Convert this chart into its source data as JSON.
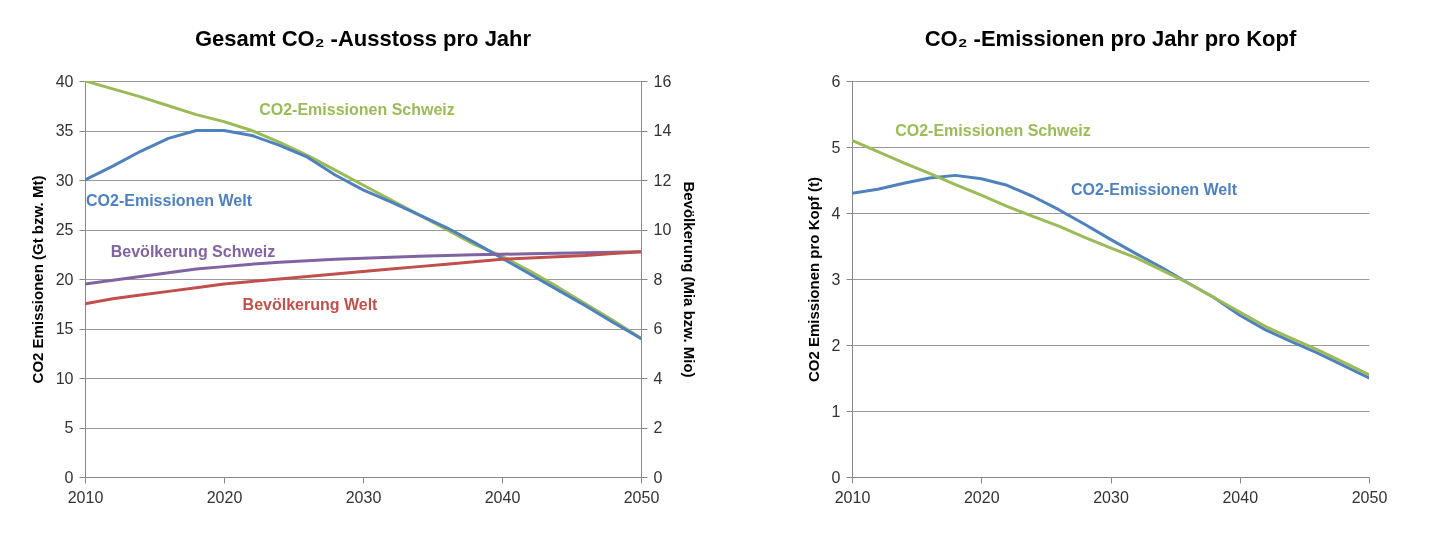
{
  "chart_data": [
    {
      "type": "line",
      "title": "Gesamt CO₂ -Ausstoss pro Jahr",
      "ylabel": "CO2 Emissionen (Gt bzw. Mt)",
      "y2label": "Bevölkerung (Mia bzw. Mio)",
      "x": [
        2010,
        2012,
        2014,
        2016,
        2018,
        2020,
        2022,
        2024,
        2026,
        2028,
        2030,
        2032,
        2034,
        2036,
        2038,
        2040,
        2042,
        2044,
        2046,
        2048,
        2050
      ],
      "xlim": [
        2010,
        2050
      ],
      "xticks": [
        2010,
        2020,
        2030,
        2040,
        2050
      ],
      "ylim": [
        0,
        40
      ],
      "yticks": [
        0,
        5,
        10,
        15,
        20,
        25,
        30,
        35,
        40
      ],
      "y2lim": [
        0,
        16
      ],
      "y2ticks": [
        0,
        2,
        4,
        6,
        8,
        10,
        12,
        14,
        16
      ],
      "grid": "y",
      "series": [
        {
          "name": "CO2-Emissionen Schweiz",
          "color": "#9bbb59",
          "values": [
            40,
            39.2,
            38.4,
            37.5,
            36.6,
            35.9,
            35.0,
            33.8,
            32.5,
            31.0,
            29.5,
            28.0,
            26.5,
            25.0,
            23.5,
            22.3,
            20.8,
            19.2,
            17.5,
            15.8,
            14
          ]
        },
        {
          "name": "CO2-Emissionen Welt",
          "color": "#4f81bd",
          "values": [
            30,
            31.4,
            32.9,
            34.2,
            35,
            35,
            34.5,
            33.5,
            32.3,
            30.5,
            29.0,
            27.8,
            26.5,
            25.2,
            23.7,
            22.1,
            20.5,
            18.9,
            17.3,
            15.6,
            14
          ]
        },
        {
          "name": "Bevölkerung Schweiz",
          "color": "#8064a2",
          "axis": "y2",
          "values": [
            7.8,
            7.95,
            8.1,
            8.25,
            8.4,
            8.5,
            8.6,
            8.68,
            8.74,
            8.8,
            8.84,
            8.88,
            8.92,
            8.95,
            8.98,
            9.0,
            9.02,
            9.04,
            9.06,
            9.08,
            9.1
          ]
        },
        {
          "name": "Bevölkerung Welt",
          "color": "#c0504d",
          "axis": "y2",
          "values": [
            7.0,
            7.2,
            7.35,
            7.5,
            7.65,
            7.8,
            7.9,
            8.0,
            8.1,
            8.2,
            8.3,
            8.4,
            8.5,
            8.6,
            8.7,
            8.8,
            8.85,
            8.9,
            8.95,
            9.03,
            9.1
          ]
        }
      ]
    },
    {
      "type": "line",
      "title": "CO₂ -Emissionen pro Jahr pro Kopf",
      "ylabel": "CO2 Emissionen pro Kopf (t)",
      "x": [
        2010,
        2012,
        2014,
        2016,
        2018,
        2020,
        2022,
        2024,
        2026,
        2028,
        2030,
        2032,
        2034,
        2036,
        2038,
        2040,
        2042,
        2044,
        2046,
        2048,
        2050
      ],
      "xlim": [
        2010,
        2050
      ],
      "xticks": [
        2010,
        2020,
        2030,
        2040,
        2050
      ],
      "ylim": [
        0,
        6
      ],
      "yticks": [
        0,
        1,
        2,
        3,
        4,
        5,
        6
      ],
      "grid": "y",
      "series": [
        {
          "name": "CO2-Emissionen Welt",
          "color": "#4f81bd",
          "values": [
            4.3,
            4.36,
            4.45,
            4.53,
            4.57,
            4.52,
            4.42,
            4.25,
            4.05,
            3.83,
            3.6,
            3.38,
            3.17,
            2.94,
            2.72,
            2.45,
            2.23,
            2.05,
            1.88,
            1.69,
            1.5
          ]
        },
        {
          "name": "CO2-Emissionen Schweiz",
          "color": "#9bbb59",
          "values": [
            5.1,
            4.93,
            4.76,
            4.6,
            4.43,
            4.27,
            4.1,
            3.95,
            3.8,
            3.63,
            3.47,
            3.32,
            3.13,
            2.94,
            2.72,
            2.5,
            2.28,
            2.1,
            1.93,
            1.74,
            1.55
          ]
        }
      ]
    }
  ]
}
